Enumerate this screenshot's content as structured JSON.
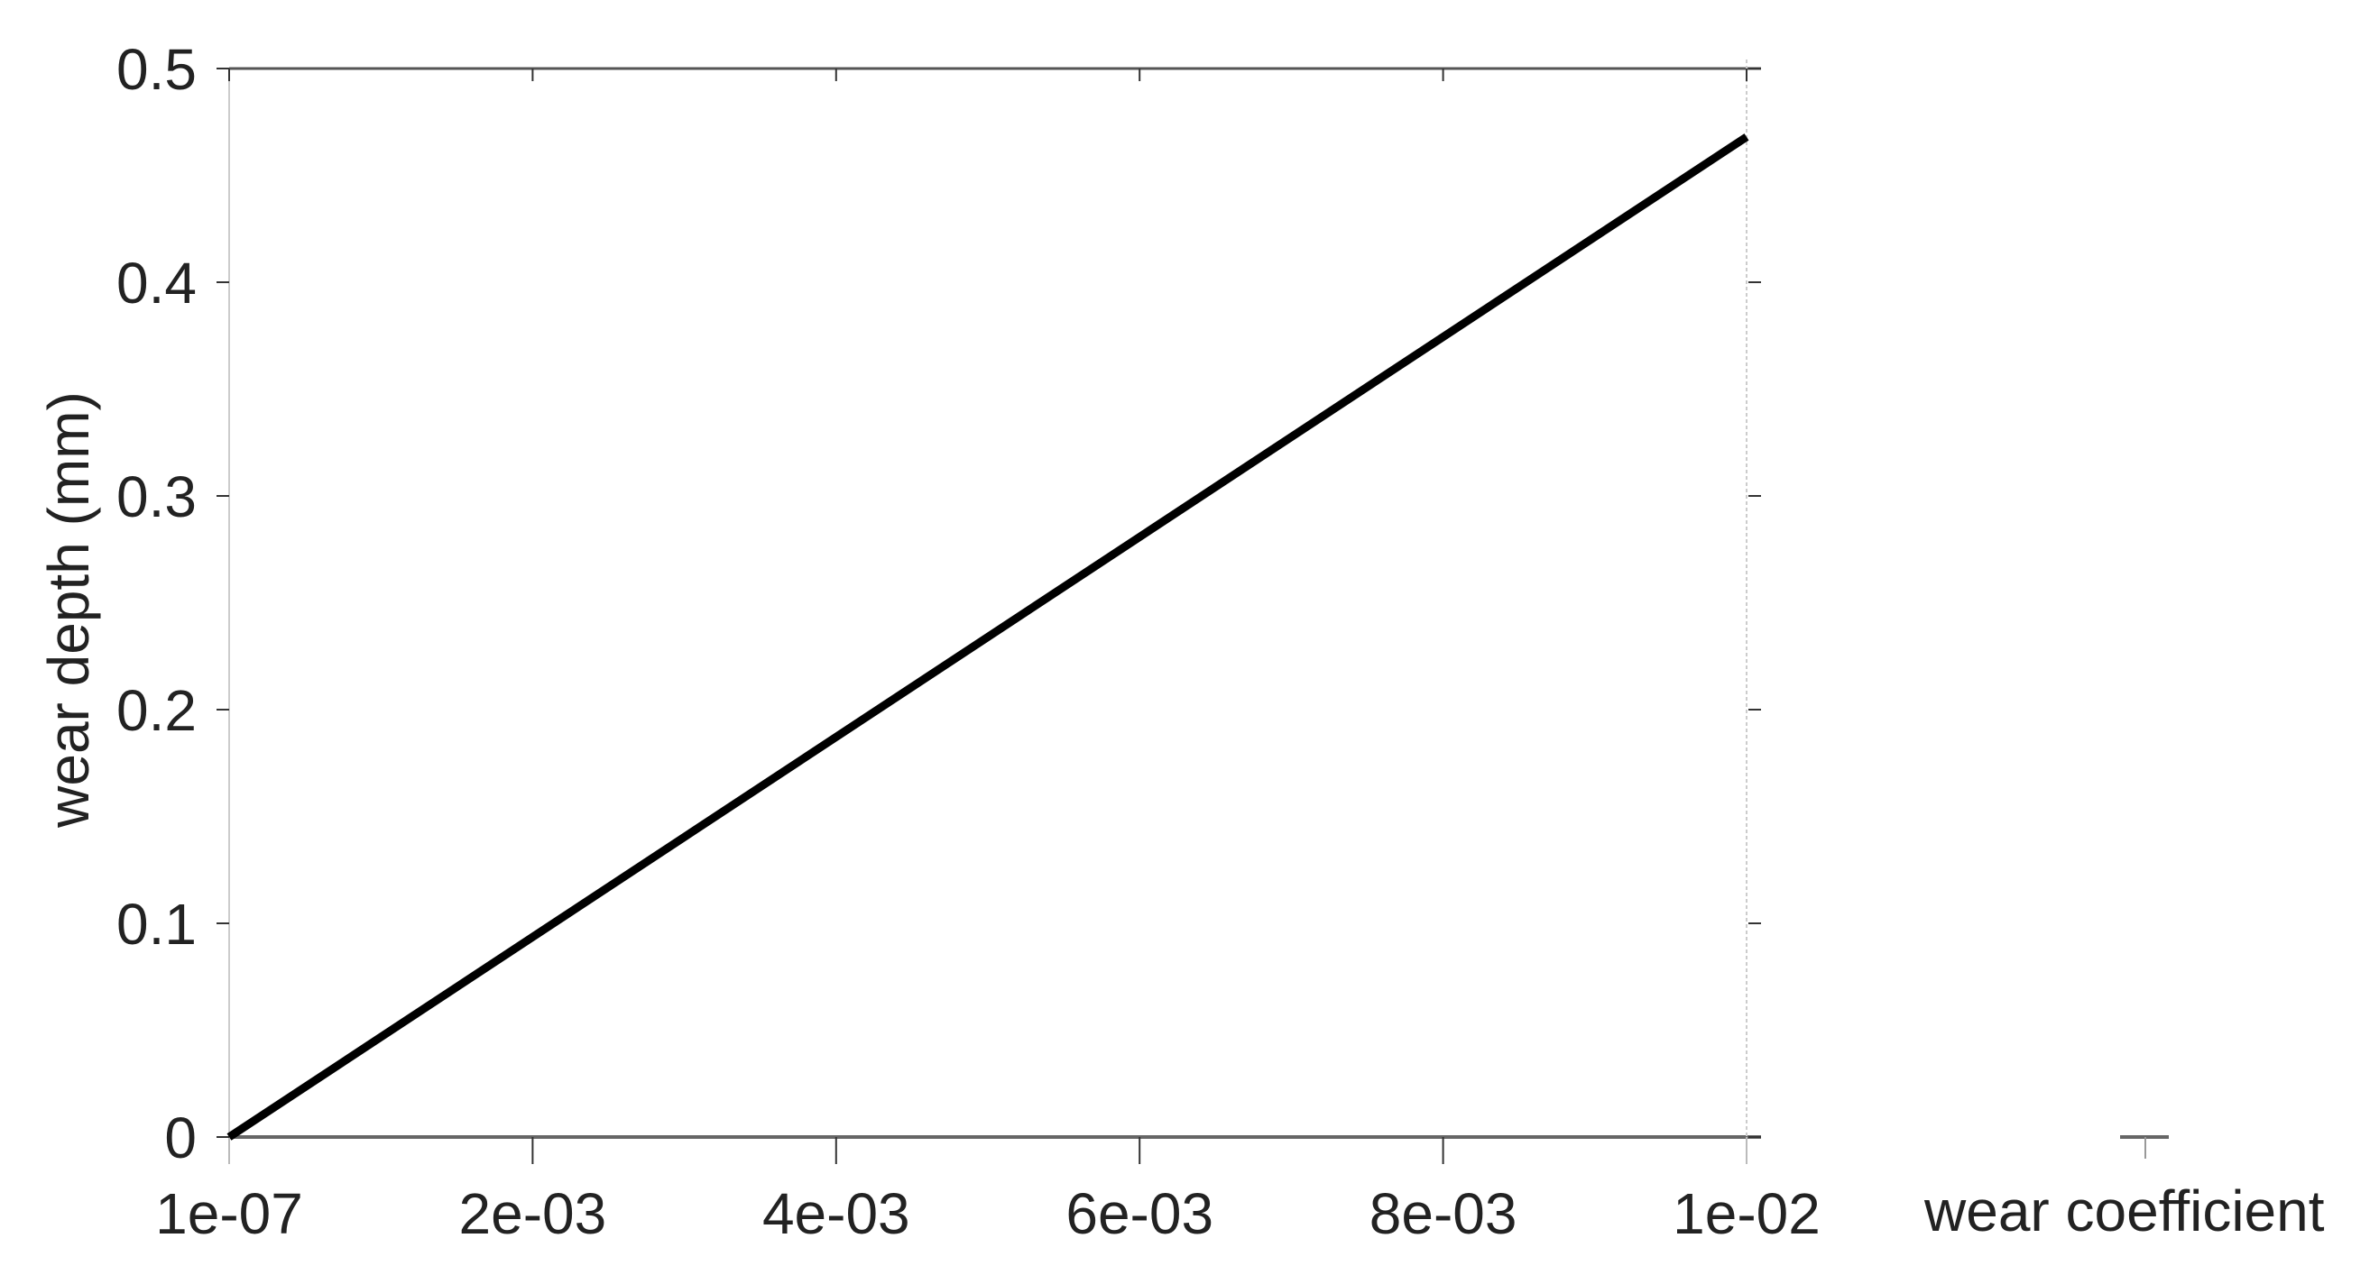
{
  "chart_data": {
    "type": "line",
    "title": "",
    "xlabel": "wear coefficient",
    "ylabel": "wear depth (mm)",
    "xlim": [
      1e-07,
      0.01
    ],
    "ylim": [
      0,
      0.5
    ],
    "x_tick_values": [
      1e-07,
      0.002,
      0.004,
      0.006,
      0.008,
      0.01
    ],
    "x_tick_labels": [
      "1e-07",
      "2e-03",
      "4e-03",
      "6e-03",
      "8e-03",
      "1e-02"
    ],
    "y_tick_values": [
      0,
      0.1,
      0.2,
      0.3,
      0.4,
      0.5
    ],
    "y_tick_labels": [
      "0",
      "0.1",
      "0.2",
      "0.3",
      "0.4",
      "0.5"
    ],
    "grid": false,
    "series": [
      {
        "x": [
          1e-07,
          0.01
        ],
        "y": [
          0,
          0.468
        ],
        "color": "#000000"
      }
    ]
  }
}
